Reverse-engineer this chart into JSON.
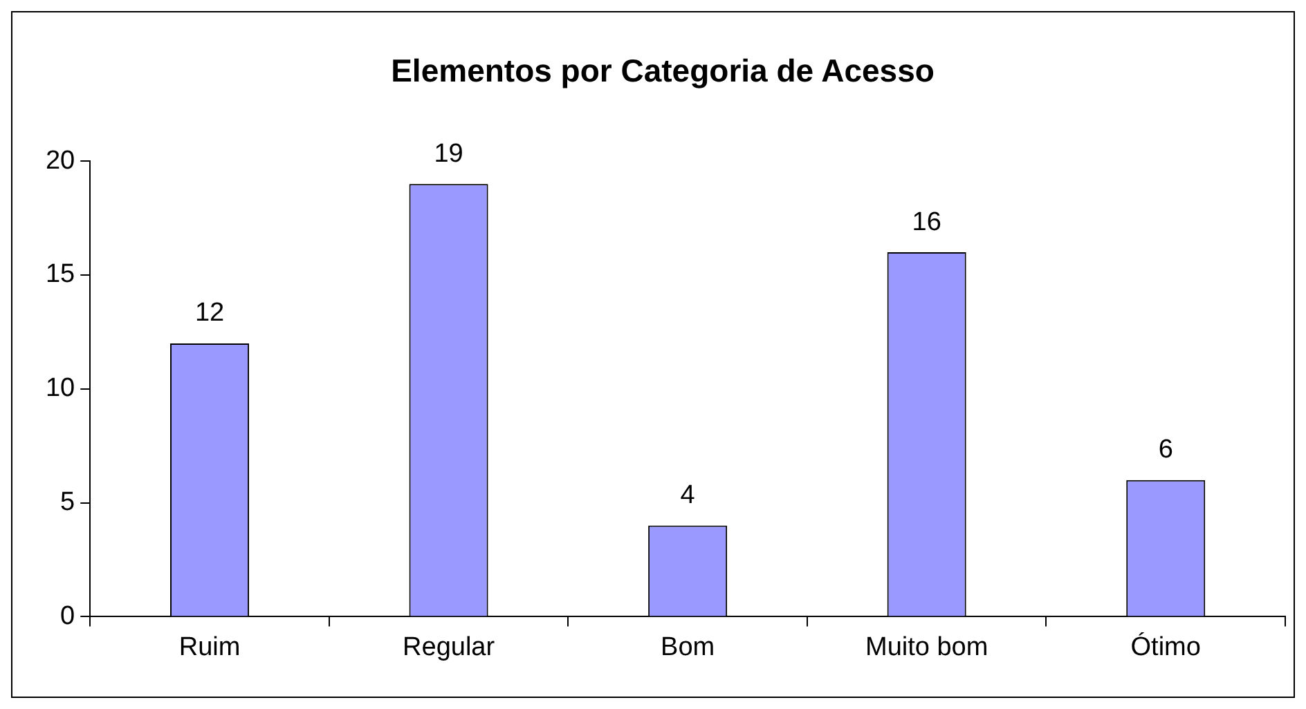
{
  "chart_data": {
    "type": "bar",
    "title": "Elementos por Categoria de Acesso",
    "categories": [
      "Ruim",
      "Regular",
      "Bom",
      "Muito bom",
      "Ótimo"
    ],
    "values": [
      12,
      19,
      4,
      16,
      6
    ],
    "color": "#9999ff",
    "ylim": [
      0,
      20
    ],
    "yticks": [
      0,
      5,
      10,
      15,
      20
    ],
    "grid": false,
    "legend": false,
    "data_labels": true
  }
}
